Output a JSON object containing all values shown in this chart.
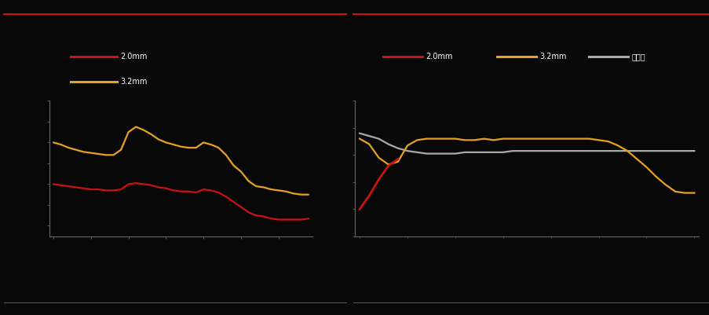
{
  "bg_color": "#080808",
  "left_chart": {
    "red_line": [
      18.0,
      17.9,
      17.8,
      17.7,
      17.6,
      17.5,
      17.5,
      17.4,
      17.4,
      17.5,
      18.0,
      18.1,
      18.0,
      17.9,
      17.7,
      17.6,
      17.4,
      17.3,
      17.3,
      17.2,
      17.5,
      17.4,
      17.2,
      16.8,
      16.3,
      15.8,
      15.3,
      15.0,
      14.9,
      14.7,
      14.6,
      14.6,
      14.6,
      14.6,
      14.7
    ],
    "orange_line": [
      22.0,
      21.8,
      21.5,
      21.3,
      21.1,
      21.0,
      20.9,
      20.8,
      20.8,
      21.3,
      23.0,
      23.5,
      23.2,
      22.8,
      22.3,
      22.0,
      21.8,
      21.6,
      21.5,
      21.5,
      22.0,
      21.8,
      21.5,
      20.8,
      19.8,
      19.2,
      18.3,
      17.8,
      17.7,
      17.5,
      17.4,
      17.3,
      17.1,
      17.0,
      17.0
    ],
    "n_points": 35,
    "ylim": [
      13,
      26
    ],
    "legend_red": "2.0mm",
    "legend_orange": "3.2mm",
    "legend_red_color": "#cc1111",
    "legend_orange_color": "#e8a020"
  },
  "right_chart": {
    "red_line_x": [
      0,
      1,
      2,
      3,
      4
    ],
    "red_line_y": [
      20,
      30,
      42,
      52,
      57
    ],
    "orange_line": [
      72,
      68,
      58,
      53,
      55,
      67,
      71,
      72,
      72,
      72,
      72,
      71,
      71,
      72,
      71,
      72,
      72,
      72,
      72,
      72,
      72,
      72,
      72,
      72,
      72,
      71,
      70,
      67,
      63,
      57,
      51,
      44,
      38,
      33,
      32,
      32
    ],
    "gray_line": [
      76,
      74,
      72,
      68,
      65,
      63,
      62,
      61,
      61,
      61,
      61,
      62,
      62,
      62,
      62,
      62,
      63,
      63,
      63,
      63,
      63,
      63,
      63,
      63,
      63,
      63,
      63,
      63,
      63,
      63,
      63,
      63,
      63,
      63,
      63,
      63
    ],
    "n_points": 36,
    "ylim": [
      0,
      100
    ],
    "legend_red": "2.0mm",
    "legend_orange": "3.2mm",
    "legend_gray": "开工率",
    "legend_red_color": "#cc1111",
    "legend_orange_color": "#e8a020",
    "legend_gray_color": "#aaaaaa"
  },
  "top_line_color": "#cc1111",
  "bottom_line_color": "#555555"
}
